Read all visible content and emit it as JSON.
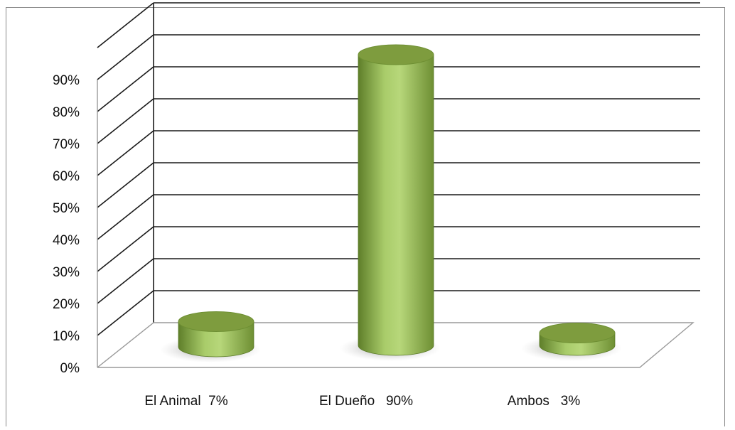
{
  "chart_data": {
    "type": "bar",
    "style": "3d-cylinder",
    "categories": [
      "El Animal  7%",
      "El Dueño   90%",
      "Ambos   3%"
    ],
    "values": [
      7,
      90,
      3
    ],
    "yticks": [
      "0%",
      "10%",
      "20%",
      "30%",
      "40%",
      "50%",
      "60%",
      "70%",
      "80%",
      "90%"
    ],
    "ylim": [
      0,
      100
    ],
    "grid": true,
    "legend": "none",
    "title": "",
    "xlabel": "",
    "ylabel": "",
    "colors": {
      "bar_light": "#b7d77a",
      "bar_mid": "#8db04a",
      "bar_dark": "#5f7f2a",
      "bar_top": "#7e9c3e",
      "grid": "#1a1a1a",
      "shadow": "#8a8a8a"
    }
  }
}
